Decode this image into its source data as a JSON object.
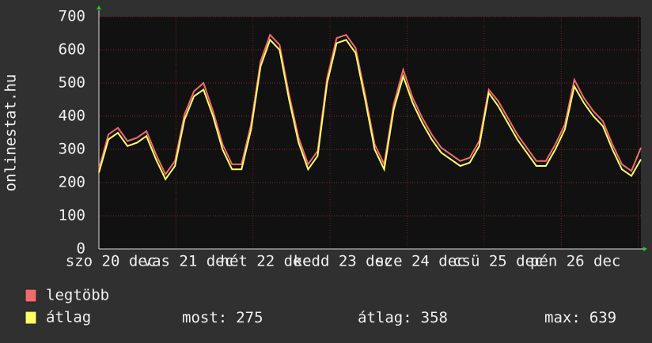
{
  "chart_data": {
    "type": "line",
    "y_label": "onlinestat.hu",
    "x_labels": [
      "szo 20 dec",
      "vas 21 dec",
      "hét 22 dec",
      "kedd 23 dec",
      "sze 24 dec",
      "csü 25 dec",
      "pén 26 dec"
    ],
    "ylim": [
      0,
      700
    ],
    "yticks": [
      0,
      100,
      200,
      300,
      400,
      500,
      600,
      700
    ],
    "grid": true,
    "series": [
      {
        "name": "legtöbb",
        "color": "#f26b6b",
        "values": [
          240,
          345,
          365,
          325,
          335,
          355,
          285,
          225,
          265,
          405,
          475,
          500,
          415,
          315,
          255,
          255,
          375,
          565,
          645,
          615,
          465,
          335,
          255,
          295,
          515,
          635,
          645,
          605,
          465,
          315,
          255,
          435,
          540,
          455,
          395,
          345,
          305,
          285,
          265,
          275,
          325,
          480,
          445,
          395,
          345,
          305,
          265,
          265,
          315,
          375,
          510,
          455,
          415,
          385,
          315,
          255,
          235,
          305
        ]
      },
      {
        "name": "átlag",
        "color": "#ffff66",
        "values": [
          230,
          330,
          350,
          310,
          320,
          340,
          270,
          210,
          250,
          390,
          460,
          480,
          400,
          300,
          240,
          240,
          360,
          550,
          630,
          600,
          450,
          320,
          240,
          280,
          500,
          620,
          630,
          590,
          450,
          300,
          240,
          420,
          520,
          440,
          380,
          330,
          290,
          270,
          250,
          260,
          310,
          470,
          430,
          380,
          330,
          290,
          250,
          250,
          300,
          360,
          490,
          440,
          400,
          370,
          300,
          240,
          220,
          270
        ]
      }
    ],
    "stats": [
      {
        "label": "most:",
        "value": 275
      },
      {
        "label": "átlag:",
        "value": 358
      },
      {
        "label": "max:",
        "value": 639
      }
    ]
  }
}
